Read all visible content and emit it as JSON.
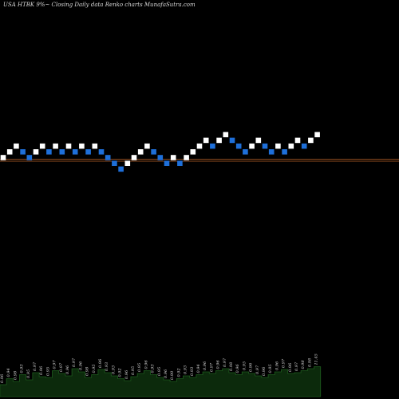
{
  "chart_data": {
    "type": "renko",
    "title": "USA HTBK 9%~  Closing Daily data  Renko  charts MunafaSutra.com",
    "colors": {
      "background": "#000000",
      "up_brick": "#ffffff",
      "down_brick": "#1e6fd9",
      "reference_line": "#8b4a1e",
      "volume_area": "#0c2a0c",
      "volume_line": "#1e5c1e"
    },
    "bricks": [
      {
        "level": 0,
        "dir": "up"
      },
      {
        "level": 1,
        "dir": "up"
      },
      {
        "level": 2,
        "dir": "up"
      },
      {
        "level": 1,
        "dir": "down"
      },
      {
        "level": 0,
        "dir": "down"
      },
      {
        "level": 1,
        "dir": "up"
      },
      {
        "level": 2,
        "dir": "up"
      },
      {
        "level": 1,
        "dir": "down"
      },
      {
        "level": 2,
        "dir": "up"
      },
      {
        "level": 1,
        "dir": "down"
      },
      {
        "level": 2,
        "dir": "up"
      },
      {
        "level": 1,
        "dir": "down"
      },
      {
        "level": 2,
        "dir": "up"
      },
      {
        "level": 1,
        "dir": "down"
      },
      {
        "level": 2,
        "dir": "up"
      },
      {
        "level": 1,
        "dir": "down"
      },
      {
        "level": 0,
        "dir": "down"
      },
      {
        "level": -1,
        "dir": "down"
      },
      {
        "level": -2,
        "dir": "down"
      },
      {
        "level": -1,
        "dir": "up"
      },
      {
        "level": 0,
        "dir": "up"
      },
      {
        "level": 1,
        "dir": "up"
      },
      {
        "level": 2,
        "dir": "up"
      },
      {
        "level": 1,
        "dir": "down"
      },
      {
        "level": 0,
        "dir": "down"
      },
      {
        "level": -1,
        "dir": "down"
      },
      {
        "level": 0,
        "dir": "up"
      },
      {
        "level": -1,
        "dir": "down"
      },
      {
        "level": 0,
        "dir": "up"
      },
      {
        "level": 1,
        "dir": "up"
      },
      {
        "level": 2,
        "dir": "up"
      },
      {
        "level": 3,
        "dir": "up"
      },
      {
        "level": 2,
        "dir": "down"
      },
      {
        "level": 3,
        "dir": "up"
      },
      {
        "level": 4,
        "dir": "up"
      },
      {
        "level": 3,
        "dir": "down"
      },
      {
        "level": 2,
        "dir": "down"
      },
      {
        "level": 1,
        "dir": "down"
      },
      {
        "level": 2,
        "dir": "up"
      },
      {
        "level": 3,
        "dir": "up"
      },
      {
        "level": 2,
        "dir": "down"
      },
      {
        "level": 1,
        "dir": "down"
      },
      {
        "level": 2,
        "dir": "up"
      },
      {
        "level": 1,
        "dir": "down"
      },
      {
        "level": 2,
        "dir": "up"
      },
      {
        "level": 3,
        "dir": "up"
      },
      {
        "level": 2,
        "dir": "down"
      },
      {
        "level": 3,
        "dir": "up"
      },
      {
        "level": 4,
        "dir": "up"
      }
    ],
    "reference_lines": [
      {
        "level": 0.0
      },
      {
        "level": -0.2
      }
    ],
    "volume": {
      "values": [
        30,
        45,
        38,
        55,
        42,
        60,
        50,
        48,
        65,
        58,
        52,
        70,
        62,
        48,
        55,
        68,
        60,
        52,
        45,
        40,
        50,
        58,
        65,
        55,
        48,
        42,
        38,
        45,
        52,
        48,
        55,
        62,
        58,
        65,
        70,
        60,
        55,
        62,
        58,
        52,
        48,
        55,
        62,
        68,
        58,
        60,
        65,
        70,
        75
      ],
      "labels": [
        "0.96",
        "0.94",
        "0.98",
        "0.93",
        "0.95",
        "0.97",
        "0.96",
        "0.95",
        "0.97",
        "0.97",
        "0.96",
        "0.97",
        "0.96",
        "0.98",
        "0.95",
        "0.96",
        "0.93",
        "0.93",
        "0.92",
        "0.96",
        "0.95",
        "0.95",
        "0.96",
        "0.93",
        "0.95",
        "0.96",
        "0.90",
        "0.92",
        "0.93",
        "0.93",
        "0.94",
        "0.96",
        "0.97",
        "0.96",
        "0.97",
        "0.98",
        "0.96",
        "0.95",
        "0.96",
        "0.97",
        "0.96",
        "0.95",
        "0.96",
        "0.97",
        "0.96",
        "0.97",
        "0.98",
        "0.98",
        "11.45"
      ]
    }
  }
}
